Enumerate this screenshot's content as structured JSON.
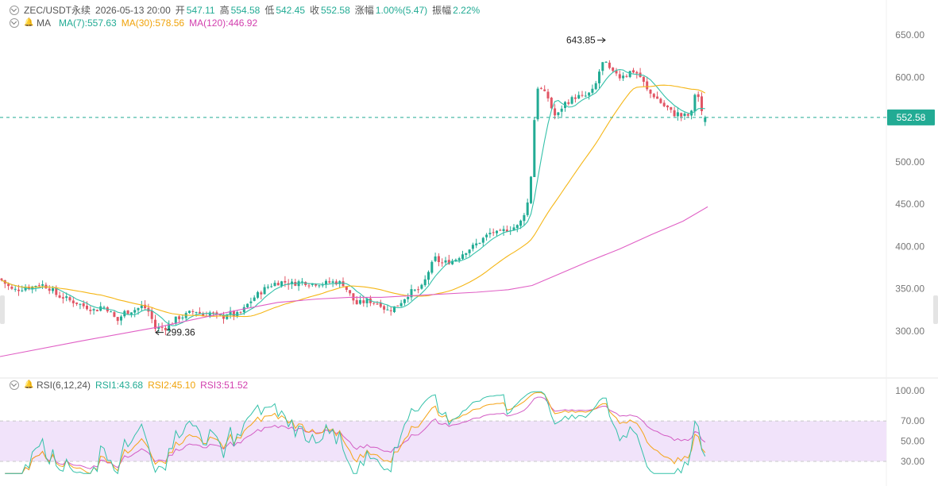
{
  "header": {
    "symbol": "ZEC/USDT永续",
    "datetime": "2026-05-13 20:00",
    "open_label": "开",
    "open": "547.11",
    "high_label": "高",
    "high": "554.58",
    "low_label": "低",
    "low": "542.45",
    "close_label": "收",
    "close": "552.58",
    "change_label": "涨幅",
    "change": "1.00%(5.47)",
    "amp_label": "振幅",
    "amp": "2.22%"
  },
  "ma_legend": {
    "name": "MA",
    "ma7": "MA(7):557.63",
    "ma30": "MA(30):578.56",
    "ma120": "MA(120):446.92"
  },
  "rsi_legend": {
    "name": "RSI(6,12,24)",
    "rsi1": "RSI1:43.68",
    "rsi2": "RSI2:45.10",
    "rsi3": "RSI3:51.52"
  },
  "colors": {
    "up": "#22ab94",
    "down": "#e15564",
    "ma7": "#34c1a9",
    "ma30": "#f5b616",
    "ma120": "#e05fc5",
    "rsi1": "#34c1a9",
    "rsi2": "#f5a416",
    "rsi3": "#d35cc4",
    "rsi_band": "#f1e3fa"
  },
  "chart_data": [
    {
      "type": "candlestick",
      "y_ticks": [
        "650.00",
        "600.00",
        "550.00",
        "500.00",
        "450.00",
        "400.00",
        "350.00",
        "300.00"
      ],
      "y_tick_values": [
        650,
        600,
        550,
        500,
        450,
        400,
        350,
        300
      ],
      "ylim": [
        255,
        667
      ],
      "current_price": "552.58",
      "current_price_value": 552.58,
      "high_annotation": "643.85",
      "high_annotation_value": 643.85,
      "low_annotation": "299.36",
      "low_annotation_value": 299.36,
      "close_path": [
        [
          0,
          362
        ],
        [
          8,
          355
        ],
        [
          16,
          348
        ],
        [
          25,
          350
        ],
        [
          32,
          352
        ],
        [
          40,
          352
        ],
        [
          48,
          356
        ],
        [
          56,
          354
        ],
        [
          64,
          350
        ],
        [
          72,
          342
        ],
        [
          80,
          340
        ],
        [
          88,
          336
        ],
        [
          96,
          334
        ],
        [
          104,
          330
        ],
        [
          112,
          328
        ],
        [
          120,
          324
        ],
        [
          128,
          330
        ],
        [
          136,
          326
        ],
        [
          142,
          318
        ],
        [
          148,
          312
        ],
        [
          156,
          322
        ],
        [
          164,
          324
        ],
        [
          172,
          326
        ],
        [
          180,
          330
        ],
        [
          188,
          322
        ],
        [
          192,
          312
        ],
        [
          196,
          302
        ],
        [
          200,
          304
        ],
        [
          208,
          304
        ],
        [
          216,
          310
        ],
        [
          224,
          316
        ],
        [
          232,
          318
        ],
        [
          240,
          322
        ],
        [
          248,
          324
        ],
        [
          256,
          318
        ],
        [
          264,
          322
        ],
        [
          272,
          318
        ],
        [
          280,
          316
        ],
        [
          288,
          322
        ],
        [
          296,
          318
        ],
        [
          304,
          322
        ],
        [
          312,
          332
        ],
        [
          320,
          340
        ],
        [
          328,
          346
        ],
        [
          336,
          352
        ],
        [
          344,
          356
        ],
        [
          352,
          358
        ],
        [
          360,
          358
        ],
        [
          368,
          356
        ],
        [
          376,
          358
        ],
        [
          384,
          358
        ],
        [
          392,
          356
        ],
        [
          400,
          357
        ],
        [
          408,
          356
        ],
        [
          416,
          358
        ],
        [
          424,
          358
        ],
        [
          432,
          356
        ],
        [
          440,
          344
        ],
        [
          448,
          332
        ],
        [
          456,
          334
        ],
        [
          464,
          336
        ],
        [
          472,
          334
        ],
        [
          480,
          332
        ],
        [
          486,
          324
        ],
        [
          492,
          326
        ],
        [
          500,
          330
        ],
        [
          508,
          338
        ],
        [
          516,
          346
        ],
        [
          524,
          348
        ],
        [
          532,
          352
        ],
        [
          540,
          372
        ],
        [
          548,
          386
        ],
        [
          556,
          380
        ],
        [
          564,
          382
        ],
        [
          572,
          384
        ],
        [
          580,
          390
        ],
        [
          588,
          396
        ],
        [
          596,
          400
        ],
        [
          604,
          406
        ],
        [
          612,
          412
        ],
        [
          620,
          418
        ],
        [
          628,
          414
        ],
        [
          636,
          420
        ],
        [
          644,
          422
        ],
        [
          652,
          424
        ],
        [
          656,
          430
        ],
        [
          660,
          440
        ],
        [
          664,
          450
        ],
        [
          667,
          470
        ],
        [
          670,
          500
        ],
        [
          672,
          540
        ],
        [
          675,
          580
        ],
        [
          678,
          594
        ],
        [
          681,
          586
        ],
        [
          684,
          575
        ],
        [
          688,
          582
        ],
        [
          692,
          570
        ],
        [
          696,
          560
        ],
        [
          700,
          552
        ],
        [
          704,
          558
        ],
        [
          708,
          566
        ],
        [
          712,
          570
        ],
        [
          716,
          572
        ],
        [
          720,
          574
        ],
        [
          726,
          578
        ],
        [
          732,
          576
        ],
        [
          738,
          578
        ],
        [
          744,
          582
        ],
        [
          748,
          585
        ],
        [
          752,
          598
        ],
        [
          756,
          612
        ],
        [
          760,
          618
        ],
        [
          764,
          614
        ],
        [
          768,
          608
        ],
        [
          772,
          604
        ],
        [
          776,
          606
        ],
        [
          780,
          600
        ],
        [
          784,
          604
        ],
        [
          788,
          602
        ],
        [
          792,
          606
        ],
        [
          796,
          608
        ],
        [
          800,
          606
        ],
        [
          804,
          603
        ],
        [
          808,
          598
        ],
        [
          812,
          590
        ],
        [
          816,
          582
        ],
        [
          820,
          580
        ],
        [
          824,
          578
        ],
        [
          828,
          574
        ],
        [
          832,
          570
        ],
        [
          836,
          566
        ],
        [
          840,
          564
        ],
        [
          844,
          560
        ],
        [
          848,
          556
        ],
        [
          852,
          558
        ],
        [
          856,
          555
        ],
        [
          860,
          553
        ],
        [
          864,
          556
        ],
        [
          868,
          554
        ],
        [
          872,
          560
        ],
        [
          874,
          574
        ],
        [
          876,
          588
        ],
        [
          878,
          584
        ],
        [
          880,
          572
        ],
        [
          882,
          560
        ],
        [
          885,
          555
        ],
        [
          888,
          552.58
        ],
        [
          890,
          552.58
        ]
      ],
      "ma_series": [
        {
          "name": "MA(7)",
          "value": "557.63",
          "window": 7
        },
        {
          "name": "MA(30)",
          "value": "578.56",
          "window": 30
        },
        {
          "name": "MA(120)",
          "value": "446.92",
          "points": [
            [
              0,
              270
            ],
            [
              100,
              288
            ],
            [
              200,
              305
            ],
            [
              300,
              325
            ],
            [
              350,
              334
            ],
            [
              400,
              338
            ],
            [
              440,
              340
            ],
            [
              480,
              340
            ],
            [
              540,
              343
            ],
            [
              600,
              346
            ],
            [
              640,
              349
            ],
            [
              670,
              354
            ],
            [
              700,
              366
            ],
            [
              740,
              382
            ],
            [
              780,
              397
            ],
            [
              820,
              414
            ],
            [
              860,
              430
            ],
            [
              891,
              446.92
            ]
          ]
        }
      ]
    },
    {
      "type": "line",
      "name": "RSI(6,12,24)",
      "y_ticks": [
        "100.00",
        "70.00",
        "50.00",
        "30.00"
      ],
      "y_tick_values": [
        100,
        70,
        50,
        30
      ],
      "ylim": [
        15,
        100
      ],
      "band": [
        30,
        70
      ],
      "series": [
        {
          "name": "RSI1",
          "value": "43.68"
        },
        {
          "name": "RSI2",
          "value": "45.10"
        },
        {
          "name": "RSI3",
          "value": "51.52"
        }
      ]
    }
  ]
}
